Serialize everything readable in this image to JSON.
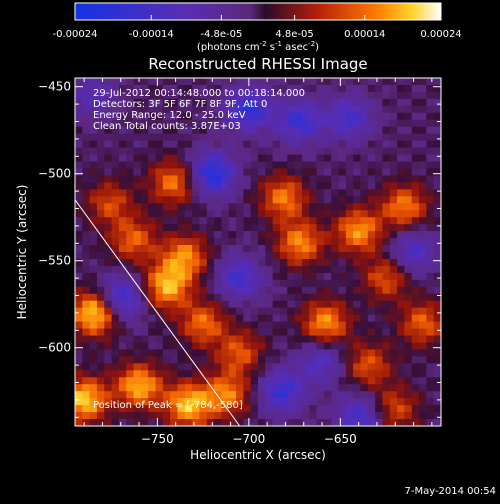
{
  "chart_data": {
    "type": "heatmap",
    "title": "Reconstructed RHESSI Image",
    "xlabel": "Heliocentric X (arcsec)",
    "ylabel": "Heliocentric Y (arcsec)",
    "xlim": [
      -795,
      -595
    ],
    "ylim": [
      -645,
      -445
    ],
    "xticks": [
      -750,
      -700,
      -650
    ],
    "yticks": [
      -450,
      -500,
      -550,
      -600
    ],
    "colorbar": {
      "min": -0.00024,
      "max": 0.00024,
      "ticks": [
        "-0.00024",
        "-0.00014",
        "-4.8e-05",
        "4.8e-05",
        "0.00014",
        "0.00024"
      ],
      "unit_base": "(photons cm",
      "unit_sup1": "-2",
      "unit_mid1": " s",
      "unit_sup2": "-1",
      "unit_mid2": " asec",
      "unit_sup3": "-2",
      "unit_end": ")"
    },
    "annotations": {
      "time": "29-Jul-2012 00:14:48.000 to 00:18:14.000",
      "detectors": "Detectors: 3F 5F 6F 7F 8F 9F, Att 0",
      "energy": "Energy Range: 12.0 - 25.0 keV",
      "clean": "Clean    Total counts: 3.87E+03",
      "peak": "Position of Peak = [-784,-580]"
    },
    "peak": [
      -784,
      -580
    ],
    "limb_line": [
      [
        -795,
        -515
      ],
      [
        -705,
        -645
      ]
    ],
    "hotspots": [
      {
        "x": -741,
        "y": -505,
        "v": 0.00016
      },
      {
        "x": -776,
        "y": -517,
        "v": 0.00012
      },
      {
        "x": -763,
        "y": -538,
        "v": 0.00014
      },
      {
        "x": -735,
        "y": -548,
        "v": 0.00017
      },
      {
        "x": -745,
        "y": -565,
        "v": 0.0002
      },
      {
        "x": -681,
        "y": -514,
        "v": 0.00016
      },
      {
        "x": -672,
        "y": -540,
        "v": 0.00017
      },
      {
        "x": -640,
        "y": -533,
        "v": 0.00018
      },
      {
        "x": -615,
        "y": -519,
        "v": 0.00016
      },
      {
        "x": -725,
        "y": -586,
        "v": 0.00015
      },
      {
        "x": -658,
        "y": -586,
        "v": 0.00018
      },
      {
        "x": -705,
        "y": -603,
        "v": 0.00013
      },
      {
        "x": -605,
        "y": -586,
        "v": 0.00014
      },
      {
        "x": -625,
        "y": -560,
        "v": 0.00013
      },
      {
        "x": -784,
        "y": -580,
        "v": 0.00024
      },
      {
        "x": -790,
        "y": -630,
        "v": 0.00022
      },
      {
        "x": -760,
        "y": -622,
        "v": 0.0002
      },
      {
        "x": -733,
        "y": -633,
        "v": 0.00021
      },
      {
        "x": -712,
        "y": -627,
        "v": 0.00016
      },
      {
        "x": -635,
        "y": -610,
        "v": 0.00013
      },
      {
        "x": -620,
        "y": -635,
        "v": 0.00012
      }
    ],
    "coldspots": [
      {
        "x": -700,
        "y": -463,
        "v": -0.00018
      },
      {
        "x": -720,
        "y": -500,
        "v": -0.0002
      },
      {
        "x": -672,
        "y": -470,
        "v": -0.00016
      },
      {
        "x": -770,
        "y": -572,
        "v": -0.00018
      },
      {
        "x": -645,
        "y": -468,
        "v": -0.00014
      },
      {
        "x": -705,
        "y": -560,
        "v": -0.00015
      },
      {
        "x": -682,
        "y": -625,
        "v": -0.00016
      },
      {
        "x": -640,
        "y": -640,
        "v": -0.00015
      },
      {
        "x": -610,
        "y": -545,
        "v": -0.00013
      },
      {
        "x": -785,
        "y": -455,
        "v": -0.0001
      },
      {
        "x": -660,
        "y": -608,
        "v": -0.00012
      }
    ]
  },
  "footer": {
    "date": "7-May-2014 00:54"
  }
}
